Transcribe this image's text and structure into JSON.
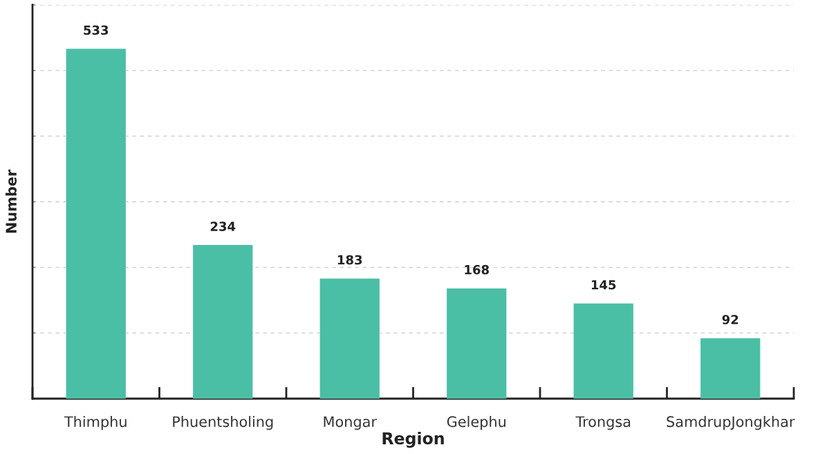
{
  "chart_data": {
    "type": "bar",
    "xlabel": "Region",
    "ylabel": "Number",
    "categories": [
      "Thimphu",
      "Phuentsholing",
      "Mongar",
      "Gelephu",
      "Trongsa",
      "SamdrupJongkhar"
    ],
    "values": [
      533,
      234,
      183,
      168,
      145,
      92
    ],
    "color": "#4abfa5",
    "ylim": [
      0,
      600
    ],
    "yticks": [
      {
        "value": 0,
        "label": null
      },
      {
        "value": 100,
        "label": null
      },
      {
        "value": 200,
        "label": null
      },
      {
        "value": 300,
        "label": null
      },
      {
        "value": 400,
        "label": null
      },
      {
        "value": 500,
        "label": null
      },
      {
        "value": 600,
        "label": null
      }
    ],
    "grid": "y",
    "data_labels": true,
    "tick_labels": "x"
  }
}
